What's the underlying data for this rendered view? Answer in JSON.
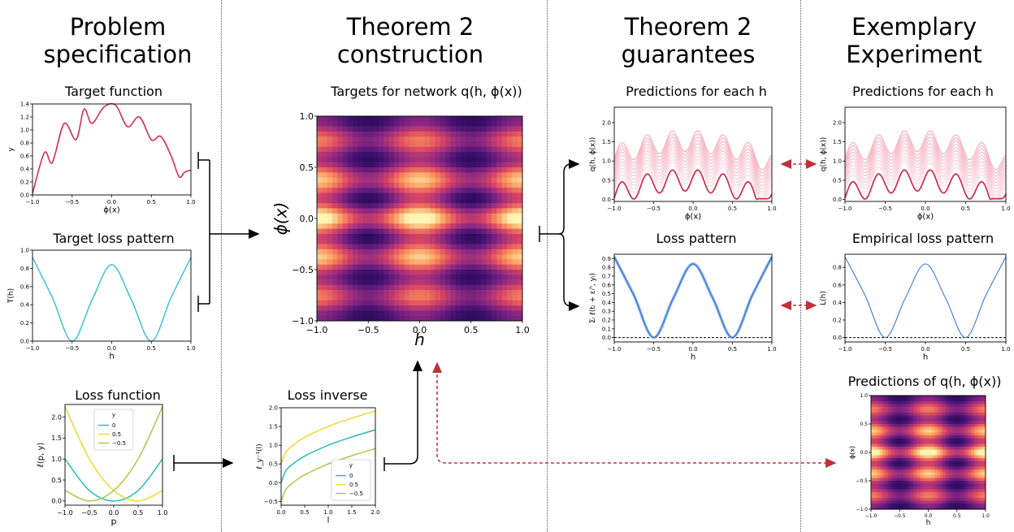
{
  "headings": {
    "problem": "Problem\nspecification",
    "construction": "Theorem 2\nconstruction",
    "guarantees": "Theorem 2\nguarantees",
    "experiment": "Exemplary\nExperiment"
  },
  "panel_titles": {
    "target_function": "Target function",
    "target_loss": "Target loss pattern",
    "loss_function": "Loss function",
    "targets": "Targets for network q(h, ϕ(x))",
    "loss_inverse": "Loss inverse",
    "predictions_guarantee": "Predictions for each h",
    "loss_pattern": "Loss pattern",
    "predictions_experiment": "Predictions for each h",
    "empirical_loss": "Empirical loss pattern",
    "predictions_heatmap": "Predictions of q(h, ϕ(x))"
  },
  "colors": {
    "crimson": "#d62f55",
    "pink": "#f28fa6",
    "cyan": "#3cc3d4",
    "teal": "#2bbcb6",
    "gold": "#f2d632",
    "lime": "#aac84a",
    "blue": "#3b78d8",
    "arrow_red": "#c0303a"
  },
  "chart_data": [
    {
      "id": "target_function",
      "type": "line",
      "xlabel": "ϕ(x)",
      "ylabel": "y",
      "xlim": [
        -1,
        1
      ],
      "ylim": [
        0,
        1.4
      ],
      "xticks": [
        "−1.0",
        "−0.5",
        "0.0",
        "0.5",
        "1.0"
      ],
      "yticks": [
        "0.0",
        "0.2",
        "0.4",
        "0.6",
        "0.8",
        "1.0",
        "1.2",
        "1.4"
      ],
      "series": [
        {
          "x": [
            -1.0,
            -0.85,
            -0.75,
            -0.6,
            -0.45,
            -0.35,
            -0.25,
            -0.1,
            0.05,
            0.2,
            0.35,
            0.5,
            0.62,
            0.75,
            0.85,
            0.92,
            1.0
          ],
          "y": [
            0.02,
            0.65,
            0.5,
            1.1,
            0.85,
            1.32,
            1.1,
            1.35,
            1.38,
            1.05,
            1.2,
            0.85,
            0.9,
            0.6,
            0.28,
            0.35,
            0.38
          ]
        }
      ]
    },
    {
      "id": "target_loss",
      "type": "line",
      "xlabel": "h",
      "ylabel": "T(h)",
      "xlim": [
        -1,
        1
      ],
      "ylim": [
        0,
        1.0
      ],
      "xticks": [
        "−1.0",
        "−0.5",
        "0.0",
        "0.5",
        "1.0"
      ],
      "yticks": [
        "0.0",
        "0.2",
        "0.4",
        "0.6",
        "0.8",
        "1.0"
      ],
      "series": [
        {
          "x": [
            -1.0,
            -0.75,
            -0.5,
            -0.25,
            0.0,
            0.25,
            0.5,
            0.75,
            1.0
          ],
          "y": [
            0.92,
            0.48,
            0.0,
            0.45,
            0.84,
            0.45,
            0.0,
            0.48,
            0.92
          ]
        }
      ]
    },
    {
      "id": "loss_function",
      "type": "line",
      "xlabel": "p",
      "ylabel": "ℓ(p, y)",
      "xlim": [
        -1,
        1
      ],
      "ylim": [
        -0.1,
        2.3
      ],
      "xticks": [
        "−1.0",
        "−0.5",
        "0.0",
        "0.5",
        "1.0"
      ],
      "yticks": [
        "0.0",
        "0.5",
        "1.0",
        "1.5",
        "2.0"
      ],
      "legend_title": "y",
      "series": [
        {
          "name": "0",
          "x": [
            -1,
            -0.5,
            0,
            0.5,
            1
          ],
          "y": [
            1.0,
            0.25,
            0.0,
            0.25,
            1.0
          ]
        },
        {
          "name": "0.5",
          "x": [
            -1,
            -0.5,
            0,
            0.5,
            1
          ],
          "y": [
            2.25,
            1.0,
            0.25,
            0.0,
            0.25
          ]
        },
        {
          "name": "−0.5",
          "x": [
            -1,
            -0.5,
            0,
            0.5,
            1
          ],
          "y": [
            0.25,
            0.0,
            0.25,
            1.0,
            2.25
          ]
        }
      ]
    },
    {
      "id": "loss_inverse",
      "type": "line",
      "xlabel": "l",
      "ylabel": "ℓ_y⁻¹(l)",
      "xlim": [
        0,
        2
      ],
      "ylim": [
        -0.6,
        2.0
      ],
      "xticks": [
        "0.0",
        "0.5",
        "1.0",
        "1.5",
        "2.0"
      ],
      "yticks": [
        "−0.5",
        "0.0",
        "0.5",
        "1.0",
        "1.5",
        "2.0"
      ],
      "legend_title": "y",
      "series": [
        {
          "name": "0",
          "x": [
            0,
            0.1,
            0.25,
            0.5,
            1.0,
            1.5,
            2.0
          ],
          "y": [
            0.0,
            0.32,
            0.5,
            0.71,
            1.0,
            1.22,
            1.41
          ]
        },
        {
          "name": "0.5",
          "x": [
            0,
            0.1,
            0.25,
            0.5,
            1.0,
            1.5,
            2.0
          ],
          "y": [
            0.5,
            0.82,
            1.0,
            1.21,
            1.5,
            1.72,
            1.91
          ]
        },
        {
          "name": "−0.5",
          "x": [
            0,
            0.1,
            0.25,
            0.5,
            1.0,
            1.5,
            2.0
          ],
          "y": [
            -0.5,
            -0.18,
            0.0,
            0.21,
            0.5,
            0.72,
            0.91
          ]
        }
      ]
    },
    {
      "id": "targets_heatmap",
      "type": "heatmap",
      "xlabel": "h",
      "ylabel": "ϕ(x)",
      "xlim": [
        -1,
        1
      ],
      "ylim": [
        -1,
        1
      ],
      "xticks": [
        "−1.0",
        "−0.5",
        "0.0",
        "0.5",
        "1.0"
      ],
      "yticks": [
        "−1.0",
        "−0.5",
        "0.0",
        "0.5",
        "1.0"
      ],
      "colormap": "magma"
    },
    {
      "id": "predictions_guarantee",
      "type": "line",
      "xlabel": "ϕ(x)",
      "ylabel": "q(h, ϕ(x))",
      "xlim": [
        -1,
        1
      ],
      "ylim": [
        -0.05,
        2.4
      ],
      "xticks": [
        "−1.0",
        "−0.5",
        "0.0",
        "0.5",
        "1.0"
      ],
      "yticks": [
        "0.0",
        "0.5",
        "1.0",
        "1.5",
        "2.0"
      ],
      "band_offset_top": 0.92,
      "band_count": 11
    },
    {
      "id": "loss_pattern",
      "type": "line",
      "xlabel": "h",
      "ylabel": "Σᵢ ℓ(tᵢ + εᵢʰ, yᵢ)",
      "xlim": [
        -1,
        1
      ],
      "ylim": [
        -0.05,
        0.95
      ],
      "xticks": [
        "−1.0",
        "−0.5",
        "0.0",
        "0.5",
        "1.0"
      ],
      "yticks": [
        "0.0",
        "0.1",
        "0.2",
        "0.3",
        "0.4",
        "0.5",
        "0.6",
        "0.7",
        "0.8",
        "0.9"
      ],
      "series": [
        {
          "x": [
            -1.0,
            -0.75,
            -0.5,
            -0.25,
            0.0,
            0.25,
            0.5,
            0.75,
            1.0
          ],
          "y": [
            0.92,
            0.48,
            0.0,
            0.45,
            0.84,
            0.45,
            0.0,
            0.48,
            0.92
          ]
        }
      ]
    },
    {
      "id": "predictions_experiment",
      "type": "line",
      "xlabel": "ϕ(x)",
      "ylabel": "q(h, ϕ(x))",
      "xlim": [
        -1,
        1
      ],
      "ylim": [
        -0.05,
        2.4
      ],
      "xticks": [
        "−1.0",
        "−0.5",
        "0.0",
        "0.5",
        "1.0"
      ],
      "yticks": [
        "0.0",
        "0.5",
        "1.0",
        "1.5",
        "2.0"
      ],
      "band_offset_top": 0.92,
      "band_count": 11
    },
    {
      "id": "empirical_loss",
      "type": "line",
      "xlabel": "h",
      "ylabel": "L(h)",
      "xlim": [
        -1,
        1
      ],
      "ylim": [
        -0.05,
        0.95
      ],
      "xticks": [
        "−1.0",
        "−0.5",
        "0.0",
        "0.5",
        "1.0"
      ],
      "yticks": [
        "0.0",
        "0.2",
        "0.4",
        "0.6",
        "0.8"
      ],
      "series": [
        {
          "x": [
            -1.0,
            -0.75,
            -0.5,
            -0.25,
            0.0,
            0.25,
            0.5,
            0.75,
            1.0
          ],
          "y": [
            0.92,
            0.48,
            0.0,
            0.45,
            0.84,
            0.45,
            0.0,
            0.48,
            0.92
          ]
        }
      ]
    },
    {
      "id": "predictions_heatmap",
      "type": "heatmap",
      "xlabel": "h",
      "ylabel": "ϕ(x)",
      "xlim": [
        -1,
        1
      ],
      "ylim": [
        -1,
        1
      ],
      "xticks": [
        "−1.0",
        "−0.5",
        "0.0",
        "0.5",
        "1.0"
      ],
      "yticks": [
        "−1.0",
        "−0.5",
        "0.0",
        "0.5",
        "1.0"
      ],
      "colormap": "magma"
    }
  ]
}
